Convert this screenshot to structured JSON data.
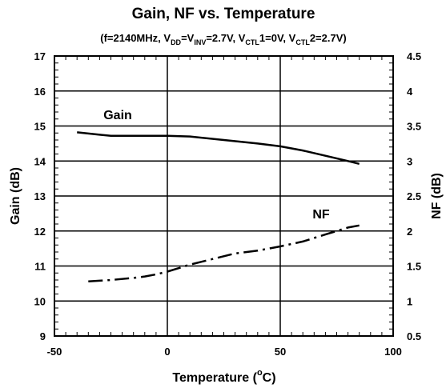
{
  "chart_data": {
    "type": "line",
    "title": "Gain, NF vs. Temperature",
    "subtitle": {
      "prefix": "(f=2140MHz, V",
      "dd": "DD",
      "eq1": "=V",
      "inv": "INV",
      "mid": "=2.7V, V",
      "ctl": "CTL",
      "mid2": "1=0V, V",
      "ctl2": "CTL",
      "end": "2=2.7V)"
    },
    "xlabel": {
      "main": "Temperature (",
      "sup": "o",
      "end": "C)"
    },
    "ylabel": "Gain (dB)",
    "y2label": "NF (dB)",
    "xlim": [
      -50,
      100
    ],
    "ylim": [
      9,
      17
    ],
    "y2lim": [
      0.5,
      4.5
    ],
    "x_ticks": [
      "-50",
      "0",
      "50",
      "100"
    ],
    "y_ticks": [
      "9",
      "10",
      "11",
      "12",
      "13",
      "14",
      "15",
      "16",
      "17"
    ],
    "y2_ticks": [
      "0.5",
      "1",
      "1.5",
      "2",
      "2.5",
      "3",
      "3.5",
      "4",
      "4.5"
    ],
    "grid": true,
    "series": [
      {
        "name": "Gain",
        "axis": "left",
        "style": "solid",
        "x": [
          -40,
          -30,
          -25,
          -10,
          0,
          10,
          25,
          40,
          50,
          60,
          70,
          80,
          85
        ],
        "y": [
          14.82,
          14.75,
          14.72,
          14.72,
          14.72,
          14.7,
          14.6,
          14.5,
          14.42,
          14.3,
          14.15,
          14.0,
          13.92
        ]
      },
      {
        "name": "NF",
        "axis": "right",
        "style": "dashdot",
        "x": [
          -35,
          -25,
          -15,
          -10,
          -5,
          0,
          10,
          20,
          30,
          40,
          50,
          60,
          70,
          80,
          85
        ],
        "y": [
          1.28,
          1.3,
          1.33,
          1.35,
          1.38,
          1.42,
          1.52,
          1.6,
          1.68,
          1.72,
          1.78,
          1.85,
          1.95,
          2.05,
          2.08
        ]
      }
    ]
  }
}
